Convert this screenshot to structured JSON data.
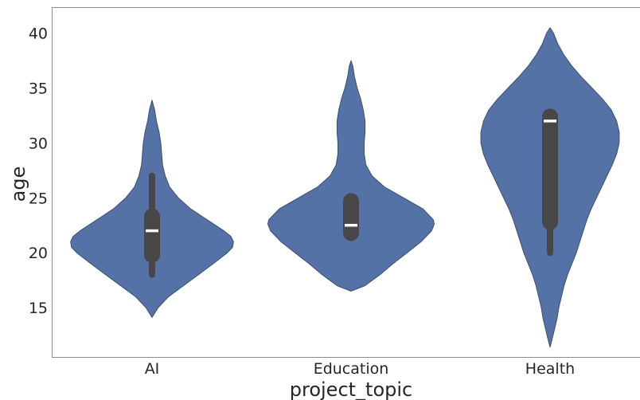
{
  "chart_data": {
    "type": "violin",
    "xlabel": "project_topic",
    "ylabel": "age",
    "ylim": [
      10.5,
      42.3
    ],
    "yticks": [
      15,
      20,
      25,
      30,
      35,
      40
    ],
    "grid": false,
    "colors": {
      "violin_fill": "#5572a6",
      "violin_edge": "#3b4f70",
      "box": "#474747",
      "median": "#ffffff",
      "frame": "#8c8c8c"
    },
    "categories": [
      "AI",
      "Education",
      "Health"
    ],
    "series": [
      {
        "category": "AI",
        "min": 14.1,
        "max": 33.9,
        "whisker_low": 18.0,
        "whisker_high": 27.0,
        "q1": 19.8,
        "q3": 23.3,
        "median": 22.0,
        "density": [
          [
            14.1,
            0
          ],
          [
            15,
            0.07
          ],
          [
            16,
            0.19
          ],
          [
            17,
            0.36
          ],
          [
            18,
            0.53
          ],
          [
            19,
            0.7
          ],
          [
            20,
            0.86
          ],
          [
            20.5,
            0.92
          ],
          [
            21,
            0.93
          ],
          [
            21.5,
            0.9
          ],
          [
            22,
            0.82
          ],
          [
            23,
            0.63
          ],
          [
            24,
            0.44
          ],
          [
            25,
            0.3
          ],
          [
            26,
            0.2
          ],
          [
            27,
            0.15
          ],
          [
            28,
            0.12
          ],
          [
            29,
            0.11
          ],
          [
            30,
            0.1
          ],
          [
            31,
            0.08
          ],
          [
            32,
            0.05
          ],
          [
            33,
            0.03
          ],
          [
            33.9,
            0
          ]
        ]
      },
      {
        "category": "Education",
        "min": 16.5,
        "max": 37.5,
        "whisker_low": 21.5,
        "whisker_high": 25.0,
        "q1": 21.8,
        "q3": 24.7,
        "median": 22.5,
        "density": [
          [
            16.5,
            0
          ],
          [
            17,
            0.16
          ],
          [
            18,
            0.33
          ],
          [
            19,
            0.48
          ],
          [
            20,
            0.64
          ],
          [
            21,
            0.8
          ],
          [
            22,
            0.92
          ],
          [
            22.6,
            0.95
          ],
          [
            23,
            0.94
          ],
          [
            24,
            0.82
          ],
          [
            25,
            0.6
          ],
          [
            26,
            0.38
          ],
          [
            27,
            0.24
          ],
          [
            28,
            0.17
          ],
          [
            29,
            0.15
          ],
          [
            30,
            0.15
          ],
          [
            31,
            0.16
          ],
          [
            32,
            0.16
          ],
          [
            33,
            0.14
          ],
          [
            34,
            0.11
          ],
          [
            35,
            0.07
          ],
          [
            36,
            0.04
          ],
          [
            37,
            0.02
          ],
          [
            37.5,
            0
          ]
        ]
      },
      {
        "category": "Health",
        "min": 11.4,
        "max": 40.5,
        "whisker_low": 20.0,
        "whisker_high": 32.5,
        "q1": 22.8,
        "q3": 32.4,
        "median": 32.0,
        "density": [
          [
            11.4,
            0
          ],
          [
            12,
            0.02
          ],
          [
            13,
            0.05
          ],
          [
            14,
            0.08
          ],
          [
            15,
            0.1
          ],
          [
            16,
            0.13
          ],
          [
            17,
            0.16
          ],
          [
            18,
            0.2
          ],
          [
            19,
            0.25
          ],
          [
            20,
            0.3
          ],
          [
            21,
            0.34
          ],
          [
            22,
            0.38
          ],
          [
            23,
            0.42
          ],
          [
            24,
            0.47
          ],
          [
            25,
            0.53
          ],
          [
            26,
            0.59
          ],
          [
            27,
            0.65
          ],
          [
            28,
            0.71
          ],
          [
            29,
            0.76
          ],
          [
            30,
            0.79
          ],
          [
            31,
            0.79
          ],
          [
            32,
            0.76
          ],
          [
            33,
            0.7
          ],
          [
            34,
            0.6
          ],
          [
            35,
            0.48
          ],
          [
            36,
            0.36
          ],
          [
            37,
            0.25
          ],
          [
            38,
            0.16
          ],
          [
            39,
            0.09
          ],
          [
            40,
            0.04
          ],
          [
            40.5,
            0
          ]
        ]
      }
    ]
  }
}
